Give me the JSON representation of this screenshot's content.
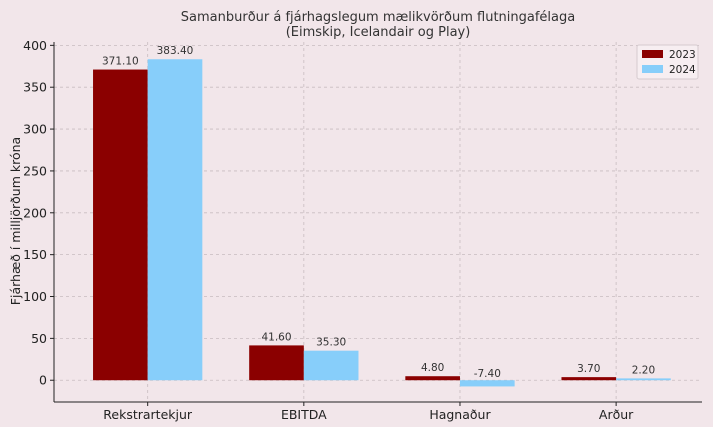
{
  "chart_data": {
    "type": "bar",
    "title": "Samanburður á fjárhagslegum mælikvörðum flutningafélaga",
    "subtitle": "(Eimskip, Icelandair og Play)",
    "xlabel": "",
    "ylabel": "Fjárhæð í milljörðum króna",
    "categories": [
      "Rekstrartekjur",
      "EBITDA",
      "Hagnaður",
      "Arður"
    ],
    "series": [
      {
        "name": "2023",
        "color": "#8b0000",
        "values": [
          371.1,
          41.6,
          4.8,
          3.7
        ],
        "labels": [
          "371.10",
          "41.60",
          "4.80",
          "3.70"
        ]
      },
      {
        "name": "2024",
        "color": "#87cefa",
        "values": [
          383.4,
          35.3,
          -7.4,
          2.2
        ],
        "labels": [
          "383.40",
          "35.30",
          "-7.40",
          "2.20"
        ]
      }
    ],
    "ylim": [
      -26,
      404
    ],
    "yticks": [
      0,
      50,
      100,
      150,
      200,
      250,
      300,
      350,
      400
    ],
    "ytick_labels": [
      "0",
      "50",
      "100",
      "150",
      "200",
      "250",
      "300",
      "350",
      "400"
    ],
    "grid": true,
    "legend_position": "top-right"
  }
}
